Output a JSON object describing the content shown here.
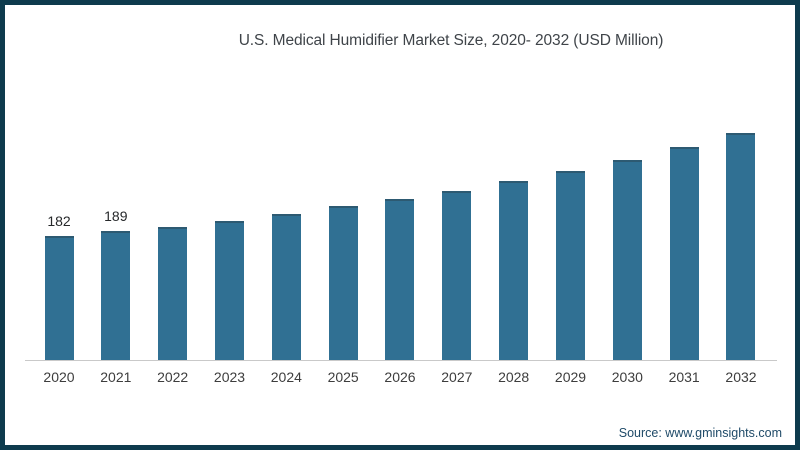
{
  "page": {
    "background": "#ffffff",
    "frame_border_color": "#0e3b4d"
  },
  "chart_data": {
    "type": "bar",
    "title": "U.S. Medical Humidifier Market Size, 2020- 2032 (USD Million)",
    "categories": [
      "2020",
      "2021",
      "2022",
      "2023",
      "2024",
      "2025",
      "2026",
      "2027",
      "2028",
      "2029",
      "2030",
      "2031",
      "2032"
    ],
    "values": [
      182,
      189,
      195,
      204,
      215,
      226,
      236,
      248,
      263,
      277,
      294,
      312,
      333
    ],
    "value_labels_shown": {
      "2020": "182",
      "2021": "189"
    },
    "xlabel": "",
    "ylabel": "",
    "ylim": [
      0,
      350
    ],
    "grid": false,
    "legend": false,
    "bar_color": "#307093",
    "bar_top_edge_color": "#2d5a72",
    "axis_line_color": "#c9c9c9"
  },
  "footer": {
    "source_label": "Source: www.gminsights.com"
  }
}
